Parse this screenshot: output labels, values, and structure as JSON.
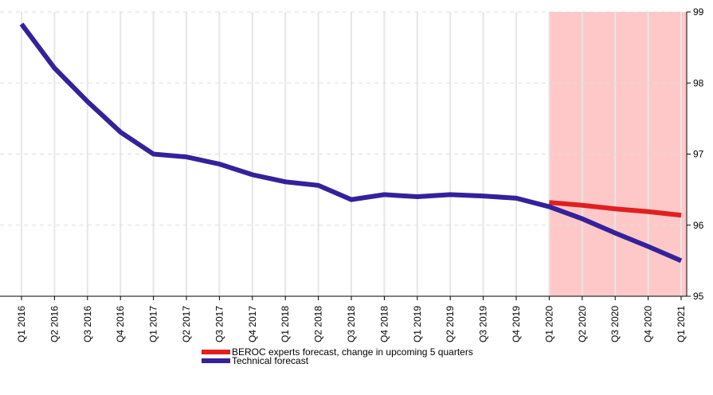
{
  "chart_data": {
    "type": "line",
    "categories": [
      "Q1 2016",
      "Q2 2016",
      "Q3 2016",
      "Q4 2016",
      "Q1 2017",
      "Q2 2017",
      "Q3 2017",
      "Q4 2017",
      "Q1 2018",
      "Q2 2018",
      "Q3 2018",
      "Q4 2018",
      "Q1 2019",
      "Q2 2019",
      "Q3 2019",
      "Q4 2019",
      "Q1 2020",
      "Q2 2020",
      "Q3 2020",
      "Q4 2020",
      "Q1 2021"
    ],
    "series": [
      {
        "name": "BEROC experts forecast, change in upcoming 5 quarters",
        "color": "#e0201f",
        "values": [
          null,
          null,
          null,
          null,
          null,
          null,
          null,
          null,
          null,
          null,
          null,
          null,
          null,
          null,
          null,
          null,
          96.32,
          96.28,
          96.23,
          96.19,
          96.14
        ]
      },
      {
        "name": "Technical forecast",
        "color": "#35219a",
        "values": [
          98.83,
          98.21,
          97.74,
          97.31,
          97.0,
          96.96,
          96.86,
          96.71,
          96.61,
          96.56,
          96.36,
          96.43,
          96.4,
          96.43,
          96.41,
          96.38,
          96.26,
          96.09,
          95.89,
          95.7,
          95.5
        ]
      }
    ],
    "ylim": [
      95,
      99
    ],
    "yticks": [
      95,
      96,
      97,
      98,
      99
    ],
    "y_axis_side": "right",
    "grid": true,
    "highlight": {
      "start": 16,
      "end": 20,
      "color": "#ffc8c8"
    },
    "legend": "bottom"
  }
}
